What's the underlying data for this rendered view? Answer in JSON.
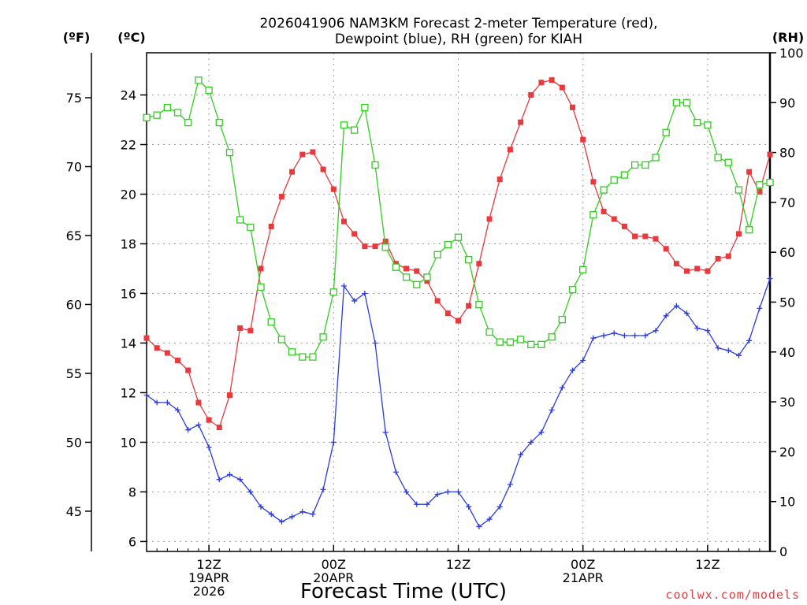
{
  "chart_data": {
    "type": "line",
    "title": "2026041906 NAM3KM Forecast 2-meter Temperature (red),",
    "subtitle": "Dewpoint (blue), RH (green) for KIAH",
    "xlabel": "Forecast Time (UTC)",
    "credit": "coolwx.com/models",
    "units": {
      "fahrenheit": "(ºF)",
      "celsius": "(ºC)",
      "rh": "(RH)"
    },
    "x_hours": [
      0,
      1,
      2,
      3,
      4,
      5,
      6,
      7,
      8,
      9,
      10,
      11,
      12,
      13,
      14,
      15,
      16,
      17,
      18,
      19,
      20,
      21,
      22,
      23,
      24,
      25,
      26,
      27,
      28,
      29,
      30,
      31,
      32,
      33,
      34,
      35,
      36,
      37,
      38,
      39,
      40,
      41,
      42,
      43,
      44,
      45,
      46,
      47,
      48,
      49,
      50,
      51,
      52,
      53,
      54,
      55,
      56,
      57,
      58,
      59,
      60
    ],
    "x_range": [
      0,
      60
    ],
    "x_ticks": [
      {
        "hour": 6,
        "lines": [
          "12Z",
          "19APR",
          "2026"
        ]
      },
      {
        "hour": 18,
        "lines": [
          "00Z",
          "20APR"
        ]
      },
      {
        "hour": 30,
        "lines": [
          "12Z"
        ]
      },
      {
        "hour": 42,
        "lines": [
          "00Z",
          "21APR"
        ]
      },
      {
        "hour": 54,
        "lines": [
          "12Z"
        ]
      }
    ],
    "celsius_axis": {
      "range": [
        5.6,
        25.7
      ],
      "ticks": [
        "6",
        "8",
        "10",
        "12",
        "14",
        "16",
        "18",
        "20",
        "22",
        "24"
      ]
    },
    "fahrenheit_axis": {
      "ticks": [
        "45",
        "50",
        "55",
        "60",
        "65",
        "70",
        "75"
      ]
    },
    "rh_axis": {
      "range": [
        0,
        100
      ],
      "ticks": [
        "0",
        "10",
        "20",
        "30",
        "40",
        "50",
        "60",
        "70",
        "80",
        "90",
        "100"
      ]
    },
    "series": [
      {
        "name": "Temperature",
        "unit": "C",
        "color": "#e8393c",
        "marker": "filled-square",
        "values": [
          14.2,
          13.8,
          13.6,
          13.3,
          12.9,
          11.6,
          10.9,
          10.6,
          11.9,
          14.6,
          14.5,
          17.0,
          18.7,
          19.9,
          20.9,
          21.6,
          21.7,
          21.0,
          20.2,
          18.9,
          18.4,
          17.9,
          17.9,
          18.1,
          17.2,
          17.0,
          16.9,
          16.5,
          15.7,
          15.2,
          14.9,
          15.5,
          17.2,
          19.0,
          20.6,
          21.8,
          22.9,
          24.0,
          24.5,
          24.6,
          24.3,
          23.5,
          22.2,
          20.5,
          19.3,
          19.0,
          18.7,
          18.3,
          18.3,
          18.2,
          17.8,
          17.2,
          16.9,
          17.0,
          16.9,
          17.4,
          17.5,
          18.4,
          20.9,
          20.1,
          21.6
        ]
      },
      {
        "name": "Dewpoint",
        "unit": "C",
        "color": "#2a3be0",
        "marker": "plus",
        "values": [
          11.9,
          11.6,
          11.6,
          11.3,
          10.5,
          10.7,
          9.8,
          8.5,
          8.7,
          8.5,
          8.0,
          7.4,
          7.1,
          6.8,
          7.0,
          7.2,
          7.1,
          8.1,
          10.0,
          16.3,
          15.7,
          16.0,
          14.0,
          10.4,
          8.8,
          8.0,
          7.5,
          7.5,
          7.9,
          8.0,
          8.0,
          7.4,
          6.6,
          6.9,
          7.4,
          8.3,
          9.5,
          10.0,
          10.4,
          11.3,
          12.2,
          12.9,
          13.3,
          14.2,
          14.3,
          14.4,
          14.3,
          14.3,
          14.3,
          14.5,
          15.1,
          15.5,
          15.2,
          14.6,
          14.5,
          13.8,
          13.7,
          13.5,
          14.1,
          15.4,
          16.6
        ]
      },
      {
        "name": "RH",
        "unit": "%",
        "color": "#33cc22",
        "marker": "open-square",
        "values": [
          87,
          87.5,
          89,
          88,
          86,
          94.5,
          92.5,
          86,
          80,
          66.5,
          65,
          53,
          46,
          42.5,
          40,
          39,
          39,
          43,
          52,
          85.5,
          84.5,
          89,
          77.5,
          61,
          57,
          55,
          53.5,
          55,
          59.5,
          61.5,
          63,
          58.5,
          49.5,
          44,
          42,
          42,
          42.5,
          41.5,
          41.5,
          43,
          46.5,
          52.5,
          56.5,
          67.5,
          72.5,
          74.5,
          75.5,
          77.5,
          77.5,
          79,
          84,
          90,
          90,
          86,
          85.5,
          79,
          78,
          72.5,
          64.5,
          73.5,
          74
        ]
      }
    ]
  }
}
